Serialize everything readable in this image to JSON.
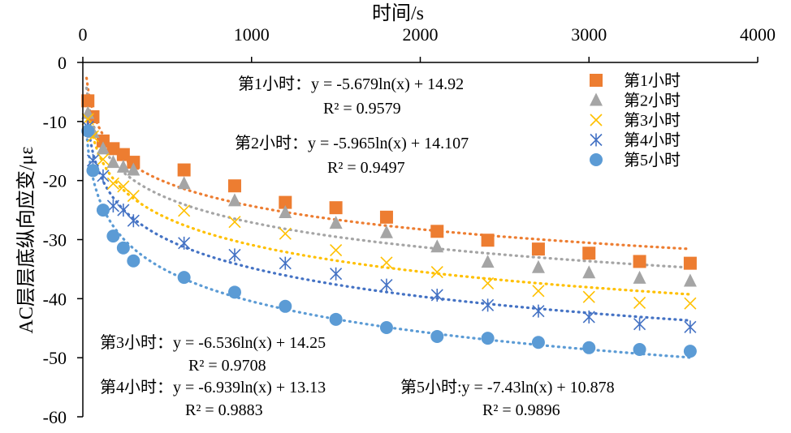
{
  "chart_data": {
    "type": "scatter",
    "xlabel": "时间/s",
    "ylabel": "AC层层底纵向应变/με",
    "xlim": [
      0,
      4000
    ],
    "ylim": [
      -60,
      0
    ],
    "x_ticks": [
      0,
      1000,
      2000,
      3000,
      4000
    ],
    "y_ticks": [
      0,
      -10,
      -20,
      -30,
      -40,
      -50,
      -60
    ],
    "x_tick_labels": [
      "0",
      "1000",
      "2000",
      "3000",
      "4000"
    ],
    "y_tick_labels": [
      "0",
      "-10",
      "-20",
      "-30",
      "-40",
      "-50",
      "-60"
    ],
    "legend_position": "top-right",
    "series": [
      {
        "name": "第1小时",
        "marker": "square",
        "color": "#ED7D31",
        "x": [
          30,
          60,
          120,
          180,
          240,
          300,
          600,
          900,
          1200,
          1500,
          1800,
          2100,
          2400,
          2700,
          3000,
          3300,
          3600
        ],
        "y": [
          -6.5,
          -9.2,
          -13.3,
          -14.6,
          -15.6,
          -16.9,
          -18.2,
          -20.9,
          -23.7,
          -24.6,
          -26.2,
          -28.6,
          -30.1,
          -31.6,
          -32.3,
          -33.7,
          -34.0
        ],
        "fit": {
          "a": -5.679,
          "b": 14.92
        },
        "equation": "第1小时：y = -5.679ln(x) + 14.92",
        "r2": "R² = 0.9579"
      },
      {
        "name": "第2小时",
        "marker": "triangle",
        "color": "#A5A5A5",
        "x": [
          30,
          60,
          120,
          180,
          240,
          300,
          600,
          900,
          1200,
          1500,
          1800,
          2100,
          2400,
          2700,
          3000,
          3300,
          3600
        ],
        "y": [
          -8.6,
          -11.8,
          -14.6,
          -16.9,
          -17.7,
          -18.2,
          -20.5,
          -23.4,
          -25.4,
          -27.2,
          -28.8,
          -31.2,
          -33.8,
          -34.7,
          -35.6,
          -36.5,
          -37.0
        ],
        "fit": {
          "a": -5.965,
          "b": 14.107
        },
        "equation": "第2小时：y = -5.965ln(x) + 14.107",
        "r2": "R² = 0.9497"
      },
      {
        "name": "第3小时",
        "marker": "x",
        "color": "#FFC000",
        "x": [
          30,
          60,
          120,
          180,
          240,
          300,
          600,
          900,
          1200,
          1500,
          1800,
          2100,
          2400,
          2700,
          3000,
          3300,
          3600
        ],
        "y": [
          -9.6,
          -12.5,
          -16.4,
          -20.5,
          -21.0,
          -22.6,
          -25.1,
          -27.0,
          -29.0,
          -31.8,
          -33.9,
          -35.5,
          -37.4,
          -38.7,
          -39.7,
          -40.7,
          -40.8
        ],
        "fit": {
          "a": -6.536,
          "b": 14.25
        },
        "equation": "第3小时：y = -6.536ln(x) + 14.25",
        "r2": "R² = 0.9708"
      },
      {
        "name": "第4小时",
        "marker": "asterisk",
        "color": "#4472C4",
        "x": [
          30,
          60,
          120,
          180,
          240,
          300,
          600,
          900,
          1200,
          1500,
          1800,
          2100,
          2400,
          2700,
          3000,
          3300,
          3600
        ],
        "y": [
          -10.9,
          -16.6,
          -19.2,
          -24.3,
          -25.0,
          -26.8,
          -30.6,
          -32.6,
          -34.0,
          -35.8,
          -37.7,
          -39.4,
          -41.1,
          -42.1,
          -43.1,
          -44.3,
          -44.8
        ],
        "fit": {
          "a": -6.939,
          "b": 13.13
        },
        "equation": "第4小时：y = -6.939ln(x) + 13.13",
        "r2": "R² = 0.9883"
      },
      {
        "name": "第5小时",
        "marker": "circle",
        "color": "#5B9BD5",
        "x": [
          30,
          60,
          120,
          180,
          240,
          300,
          600,
          900,
          1200,
          1500,
          1800,
          2100,
          2400,
          2700,
          3000,
          3300,
          3600
        ],
        "y": [
          -11.6,
          -18.3,
          -25.0,
          -29.4,
          -31.4,
          -33.6,
          -36.4,
          -38.9,
          -41.3,
          -43.5,
          -44.9,
          -46.4,
          -46.7,
          -47.4,
          -48.3,
          -48.6,
          -48.9
        ],
        "fit": {
          "a": -7.43,
          "b": 10.878
        },
        "equation": "第5小时:y = -7.43ln(x) + 10.878",
        "r2": "R² = 0.9896"
      }
    ]
  }
}
